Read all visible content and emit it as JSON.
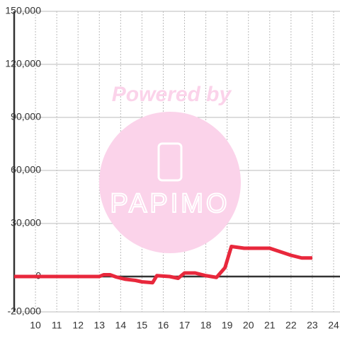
{
  "chart_data": {
    "type": "line",
    "watermark": {
      "line1": "Powered by",
      "line2": "PAPIMO"
    },
    "x": [
      9,
      13,
      13.2,
      13.5,
      13.8,
      14.2,
      14.7,
      15,
      15.5,
      15.7,
      16.3,
      16.7,
      17,
      17.5,
      18,
      18.5,
      18.9,
      19.2,
      19.8,
      20,
      21,
      21.5,
      22,
      22.5,
      23
    ],
    "series": [
      {
        "color": "#e8283c",
        "values": [
          0,
          0,
          1000,
          1000,
          -300,
          -1500,
          -2200,
          -3000,
          -3500,
          500,
          0,
          -1000,
          2000,
          2000,
          500,
          -500,
          5000,
          17000,
          16000,
          16000,
          16000,
          14000,
          12000,
          10500,
          10500
        ]
      }
    ],
    "xlim": [
      9,
      24.3
    ],
    "xticks": [
      10,
      11,
      12,
      13,
      14,
      15,
      16,
      17,
      18,
      19,
      20,
      21,
      22,
      23,
      24
    ],
    "ylim": [
      -20000,
      150000
    ],
    "yticks": [
      {
        "value": 150000,
        "label": "150,000"
      },
      {
        "value": 120000,
        "label": "120,000"
      },
      {
        "value": 90000,
        "label": "90,000"
      },
      {
        "value": 60000,
        "label": "60,000"
      },
      {
        "value": 30000,
        "label": "30,000"
      },
      0,
      {
        "value": -20000,
        "label": "-20,000"
      }
    ],
    "grid": true
  }
}
